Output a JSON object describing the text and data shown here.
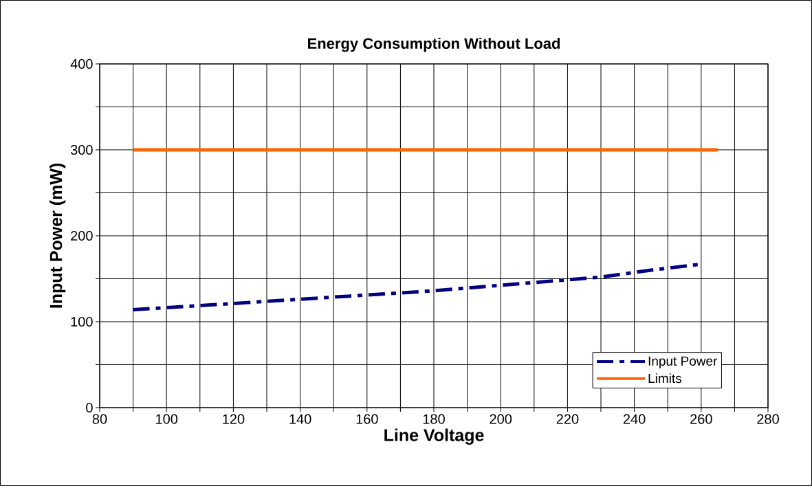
{
  "chart_data": {
    "type": "line",
    "title": "Energy Consumption Without Load",
    "xlabel": "Line Voltage",
    "ylabel": "Input Power (mW)",
    "series": [
      {
        "name": "Input Power",
        "color": "#000080",
        "line_style": "dashed",
        "x": [
          90,
          115,
          180,
          230,
          245,
          260
        ],
        "values": [
          114,
          120,
          136,
          152,
          160,
          167
        ]
      },
      {
        "name": "Limits",
        "color": "#ff6600",
        "line_style": "solid",
        "x": [
          90,
          265
        ],
        "values": [
          300,
          300
        ]
      }
    ],
    "xlim": [
      80,
      280
    ],
    "ylim": [
      0,
      400
    ],
    "xticks": [
      80,
      {
        "value": 90,
        "label": null
      },
      100,
      {
        "value": 110,
        "label": null
      },
      120,
      {
        "value": 130,
        "label": null
      },
      140,
      {
        "value": 150,
        "label": null
      },
      160,
      {
        "value": 170,
        "label": null
      },
      180,
      {
        "value": 190,
        "label": null
      },
      200,
      {
        "value": 210,
        "label": null
      },
      220,
      {
        "value": 230,
        "label": null
      },
      240,
      {
        "value": 250,
        "label": null
      },
      260,
      {
        "value": 270,
        "label": null
      },
      280
    ],
    "yticks": [
      0,
      {
        "value": 50,
        "label": null
      },
      100,
      {
        "value": 150,
        "label": null
      },
      200,
      {
        "value": 250,
        "label": null
      },
      300,
      {
        "value": 350,
        "label": null
      },
      400
    ],
    "grid": true,
    "legend": "bottom right",
    "marker": "none"
  }
}
